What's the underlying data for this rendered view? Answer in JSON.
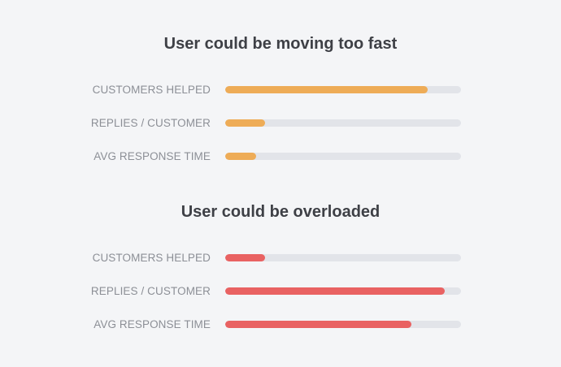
{
  "sections": [
    {
      "title": "User could be moving too fast",
      "color": "#eeac57",
      "metrics": [
        {
          "label": "CUSTOMERS HELPED",
          "value": 0.86
        },
        {
          "label": "REPLIES / CUSTOMER",
          "value": 0.17
        },
        {
          "label": "AVG RESPONSE TIME",
          "value": 0.13
        }
      ]
    },
    {
      "title": "User could be overloaded",
      "color": "#e96262",
      "metrics": [
        {
          "label": "CUSTOMERS HELPED",
          "value": 0.17
        },
        {
          "label": "REPLIES / CUSTOMER",
          "value": 0.93
        },
        {
          "label": "AVG RESPONSE TIME",
          "value": 0.79
        }
      ]
    }
  ]
}
